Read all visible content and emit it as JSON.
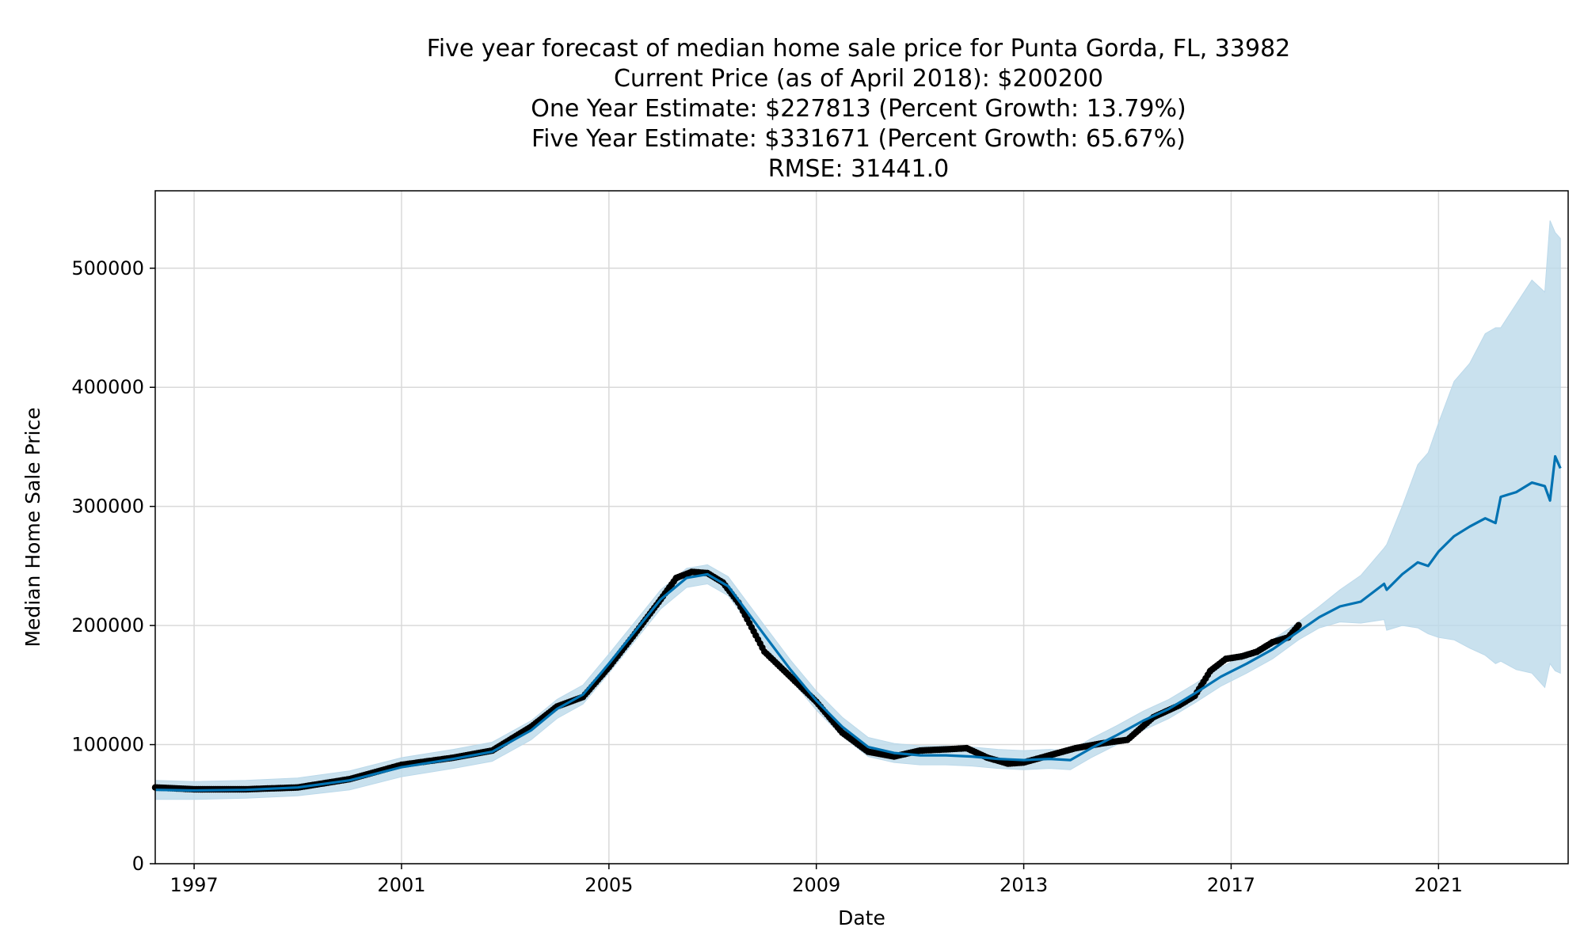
{
  "chart_data": {
    "type": "line",
    "title_lines": [
      "Five year forecast of median home sale price for Punta Gorda, FL, 33982",
      "Current Price (as of April 2018): $200200",
      "One Year Estimate: $227813 (Percent Growth: 13.79%)",
      "Five Year Estimate: $331671 (Percent Growth: 65.67%)",
      "RMSE: 31441.0"
    ],
    "xlabel": "Date",
    "ylabel": "Median Home Sale Price",
    "xlim": [
      1996.25,
      2023.5
    ],
    "ylim": [
      0,
      565000
    ],
    "x_ticks": [
      1997,
      2001,
      2005,
      2009,
      2013,
      2017,
      2021
    ],
    "x_tick_labels": [
      "1997",
      "2001",
      "2005",
      "2009",
      "2013",
      "2017",
      "2021"
    ],
    "y_ticks": [
      0,
      100000,
      200000,
      300000,
      400000,
      500000
    ],
    "y_tick_labels": [
      "0",
      "100000",
      "200000",
      "300000",
      "400000",
      "500000"
    ],
    "grid": true,
    "colors": {
      "forecast": "#0072B2",
      "band": "#bcd9ea",
      "observed": "#000000"
    },
    "observed": {
      "x": [
        1996.25,
        1997,
        1998,
        1999,
        2000,
        2001,
        2002,
        2002.75,
        2003.5,
        2004,
        2004.5,
        2005,
        2005.5,
        2006,
        2006.3,
        2006.6,
        2006.9,
        2007.2,
        2007.5,
        2008,
        2008.5,
        2009,
        2009.5,
        2010,
        2010.5,
        2011,
        2011.5,
        2011.9,
        2012.3,
        2012.7,
        2013,
        2013.5,
        2014,
        2014.5,
        2015,
        2015.5,
        2016,
        2016.3,
        2016.6,
        2016.9,
        2017.2,
        2017.5,
        2017.8,
        2018.1,
        2018.3
      ],
      "y": [
        64000,
        62500,
        62500,
        64000,
        71000,
        83000,
        89000,
        95000,
        115000,
        132000,
        140000,
        165000,
        193000,
        222000,
        240000,
        245000,
        244000,
        236000,
        219000,
        178000,
        157000,
        136000,
        110000,
        94000,
        90000,
        95000,
        96000,
        97000,
        89000,
        84000,
        85000,
        91000,
        97000,
        101000,
        104000,
        123000,
        133000,
        141000,
        162000,
        172000,
        174000,
        178000,
        186000,
        190000,
        200200
      ]
    },
    "forecast": {
      "x": [
        1996.25,
        1997,
        1998,
        1999,
        2000,
        2001,
        2002,
        2002.75,
        2003.5,
        2004,
        2004.5,
        2005,
        2005.5,
        2006,
        2006.5,
        2006.9,
        2007.3,
        2008,
        2008.5,
        2009,
        2009.5,
        2010,
        2010.5,
        2011,
        2011.5,
        2012,
        2012.5,
        2013,
        2013.5,
        2013.9,
        2014.3,
        2014.8,
        2015.3,
        2015.8,
        2016.3,
        2016.8,
        2017.3,
        2017.8,
        2018.3,
        2018.7,
        2019.1,
        2019.5,
        2019.95,
        2020,
        2020.3,
        2020.6,
        2020.8,
        2021,
        2021.3,
        2021.6,
        2021.9,
        2022.1,
        2022.2,
        2022.5,
        2022.8,
        2023.05,
        2023.15,
        2023.25,
        2023.35
      ],
      "y": [
        62000,
        61500,
        62000,
        64000,
        70000,
        81000,
        88000,
        94000,
        112000,
        130000,
        142000,
        168000,
        195000,
        222000,
        240000,
        243000,
        233000,
        192000,
        163000,
        137000,
        115000,
        98000,
        93000,
        91000,
        91000,
        90000,
        88000,
        87000,
        88000,
        87000,
        97000,
        108000,
        120000,
        130000,
        143000,
        157000,
        168000,
        180000,
        195000,
        207000,
        216000,
        220000,
        235000,
        230000,
        243000,
        253000,
        250000,
        262000,
        275000,
        283000,
        290000,
        286000,
        308000,
        312000,
        320000,
        317000,
        305000,
        342000,
        332000
      ]
    },
    "band": {
      "x": [
        1996.25,
        1997,
        1998,
        1999,
        2000,
        2001,
        2002,
        2002.75,
        2003.5,
        2004,
        2004.5,
        2005,
        2005.5,
        2006,
        2006.5,
        2006.9,
        2007.3,
        2008,
        2008.5,
        2009,
        2009.5,
        2010,
        2010.5,
        2011,
        2011.5,
        2012,
        2012.5,
        2013,
        2013.5,
        2013.9,
        2014.3,
        2014.8,
        2015.3,
        2015.8,
        2016.3,
        2016.8,
        2017.3,
        2017.8,
        2018.3,
        2018.7,
        2019.1,
        2019.5,
        2019.95,
        2020,
        2020.3,
        2020.6,
        2020.8,
        2021,
        2021.3,
        2021.6,
        2021.9,
        2022.1,
        2022.2,
        2022.5,
        2022.8,
        2023.05,
        2023.15,
        2023.25,
        2023.35
      ],
      "lower": [
        54000,
        54000,
        55000,
        57000,
        62000,
        73000,
        80000,
        86000,
        104000,
        122000,
        134000,
        160000,
        187000,
        214000,
        232000,
        235000,
        225000,
        184000,
        155000,
        129000,
        107000,
        90000,
        85000,
        83000,
        83000,
        82000,
        80000,
        79000,
        80000,
        79000,
        89000,
        100000,
        112000,
        122000,
        135000,
        149000,
        160000,
        172000,
        188000,
        198000,
        203000,
        202000,
        205000,
        196000,
        200000,
        198000,
        193000,
        190000,
        188000,
        181000,
        175000,
        168000,
        170000,
        163000,
        160000,
        148000,
        168000,
        162000,
        160000
      ],
      "upper": [
        70000,
        69000,
        70000,
        72000,
        78000,
        89000,
        96000,
        102000,
        120000,
        138000,
        150000,
        176000,
        203000,
        230000,
        248000,
        251000,
        241000,
        200000,
        171000,
        145000,
        123000,
        106000,
        101000,
        99000,
        99000,
        98000,
        96000,
        95000,
        96000,
        95000,
        105000,
        116000,
        128000,
        138000,
        151000,
        165000,
        176000,
        188000,
        203000,
        216000,
        230000,
        242000,
        265000,
        268000,
        300000,
        335000,
        345000,
        370000,
        405000,
        420000,
        445000,
        450000,
        450000,
        470000,
        490000,
        480000,
        540000,
        530000,
        525000
      ]
    }
  }
}
